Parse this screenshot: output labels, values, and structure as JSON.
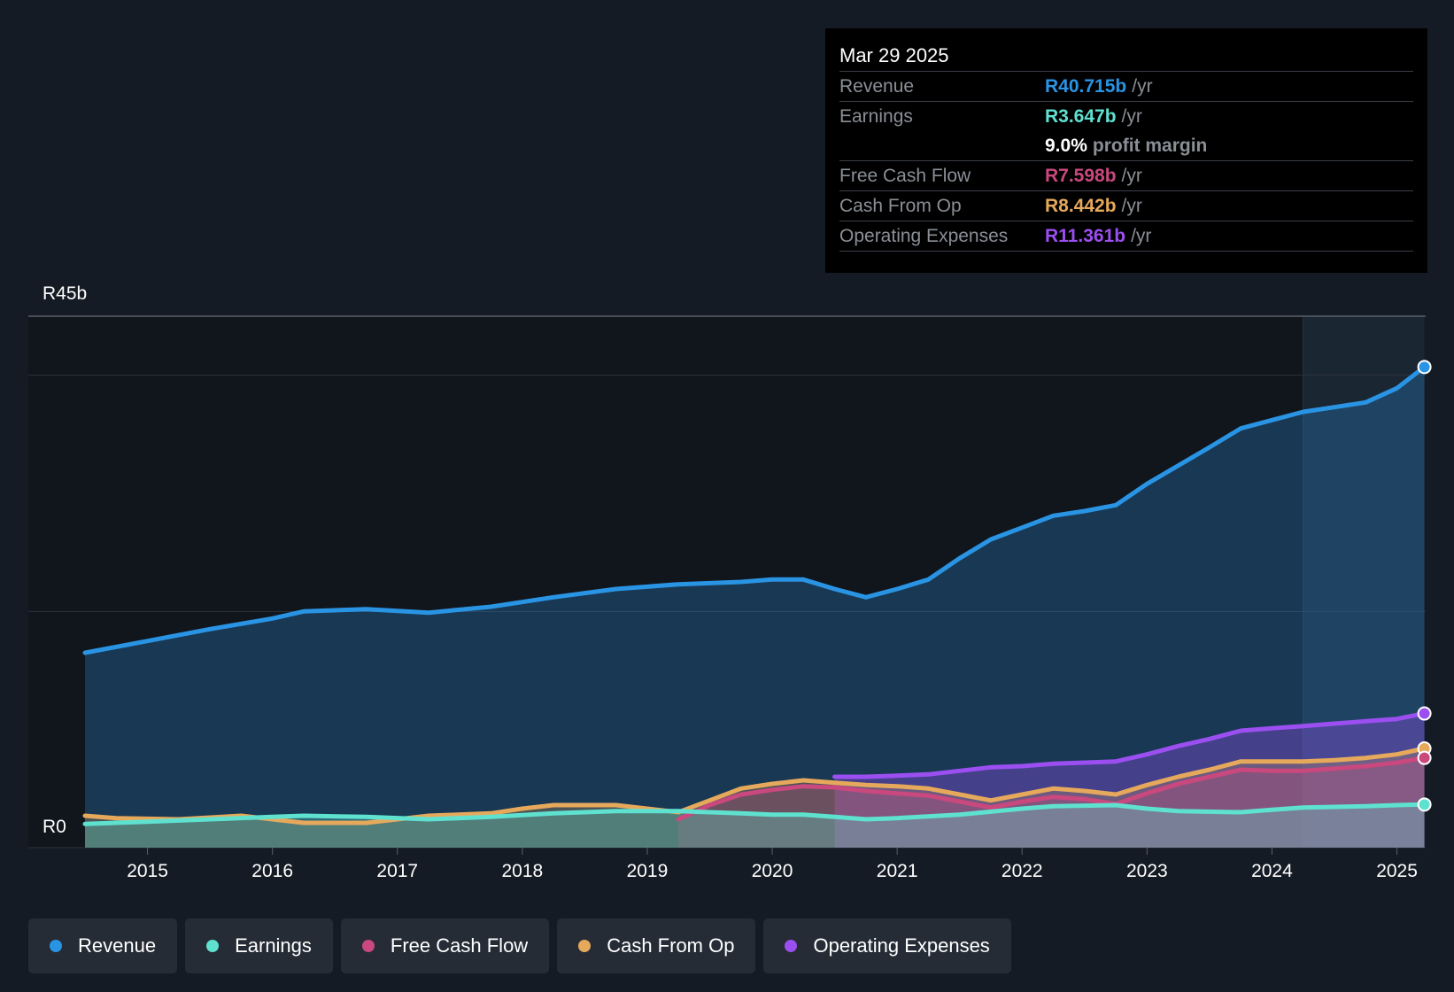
{
  "tooltip": {
    "date": "Mar 29 2025",
    "revenue_label": "Revenue",
    "revenue_value": "R40.715b",
    "earnings_label": "Earnings",
    "earnings_value": "R3.647b",
    "margin_value": "9.0%",
    "margin_text": "profit margin",
    "fcf_label": "Free Cash Flow",
    "fcf_value": "R7.598b",
    "cfo_label": "Cash From Op",
    "cfo_value": "R8.442b",
    "opex_label": "Operating Expenses",
    "opex_value": "R11.361b",
    "unit": "/yr"
  },
  "colors": {
    "revenue": "#2a94e4",
    "earnings": "#5fe1d0",
    "fcf": "#c9487e",
    "cfo": "#e6a95c",
    "opex": "#9b4ff0"
  },
  "chart_data": {
    "type": "line",
    "ylabel_top": "R45b",
    "ylabel_bottom": "R0",
    "ylim": [
      0,
      45
    ],
    "xlim": [
      2014.0,
      2025.22
    ],
    "xticks": [
      "2015",
      "2016",
      "2017",
      "2018",
      "2019",
      "2020",
      "2021",
      "2022",
      "2023",
      "2024",
      "2025"
    ],
    "forecast_start": 2024.25,
    "series": [
      {
        "name": "Revenue",
        "key": "revenue",
        "points": [
          [
            2014.5,
            16.5
          ],
          [
            2015.0,
            17.5
          ],
          [
            2015.5,
            18.5
          ],
          [
            2016.0,
            19.4
          ],
          [
            2016.25,
            20.0
          ],
          [
            2016.75,
            20.2
          ],
          [
            2017.25,
            19.9
          ],
          [
            2017.75,
            20.4
          ],
          [
            2018.25,
            21.2
          ],
          [
            2018.75,
            21.9
          ],
          [
            2019.25,
            22.3
          ],
          [
            2019.75,
            22.5
          ],
          [
            2020.0,
            22.7
          ],
          [
            2020.25,
            22.7
          ],
          [
            2020.5,
            21.9
          ],
          [
            2020.75,
            21.2
          ],
          [
            2021.0,
            21.9
          ],
          [
            2021.25,
            22.7
          ],
          [
            2021.5,
            24.5
          ],
          [
            2021.75,
            26.1
          ],
          [
            2022.0,
            27.1
          ],
          [
            2022.25,
            28.1
          ],
          [
            2022.5,
            28.5
          ],
          [
            2022.75,
            29.0
          ],
          [
            2023.0,
            30.8
          ],
          [
            2023.5,
            33.9
          ],
          [
            2023.75,
            35.5
          ],
          [
            2024.0,
            36.2
          ],
          [
            2024.25,
            36.9
          ],
          [
            2024.5,
            37.3
          ],
          [
            2024.75,
            37.7
          ],
          [
            2025.0,
            38.9
          ],
          [
            2025.22,
            40.7
          ]
        ]
      },
      {
        "name": "Earnings",
        "key": "earnings",
        "points": [
          [
            2014.5,
            2.0
          ],
          [
            2015.0,
            2.2
          ],
          [
            2015.5,
            2.4
          ],
          [
            2016.0,
            2.6
          ],
          [
            2016.25,
            2.7
          ],
          [
            2016.75,
            2.6
          ],
          [
            2017.25,
            2.4
          ],
          [
            2017.75,
            2.6
          ],
          [
            2018.25,
            2.9
          ],
          [
            2018.75,
            3.1
          ],
          [
            2019.25,
            3.1
          ],
          [
            2019.75,
            2.9
          ],
          [
            2020.0,
            2.8
          ],
          [
            2020.25,
            2.8
          ],
          [
            2020.5,
            2.6
          ],
          [
            2020.75,
            2.4
          ],
          [
            2021.0,
            2.5
          ],
          [
            2021.5,
            2.8
          ],
          [
            2022.0,
            3.3
          ],
          [
            2022.25,
            3.5
          ],
          [
            2022.75,
            3.6
          ],
          [
            2023.0,
            3.3
          ],
          [
            2023.25,
            3.1
          ],
          [
            2023.75,
            3.0
          ],
          [
            2024.0,
            3.2
          ],
          [
            2024.25,
            3.4
          ],
          [
            2024.75,
            3.5
          ],
          [
            2025.0,
            3.6
          ],
          [
            2025.22,
            3.65
          ]
        ]
      },
      {
        "name": "Free Cash Flow",
        "key": "fcf",
        "points": [
          [
            2019.25,
            2.4
          ],
          [
            2019.5,
            3.6
          ],
          [
            2019.75,
            4.5
          ],
          [
            2020.0,
            4.9
          ],
          [
            2020.25,
            5.2
          ],
          [
            2020.5,
            5.1
          ],
          [
            2020.75,
            4.8
          ],
          [
            2021.0,
            4.6
          ],
          [
            2021.25,
            4.4
          ],
          [
            2021.5,
            3.9
          ],
          [
            2021.75,
            3.4
          ],
          [
            2022.0,
            3.9
          ],
          [
            2022.25,
            4.3
          ],
          [
            2022.5,
            4.1
          ],
          [
            2022.75,
            3.7
          ],
          [
            2023.0,
            4.6
          ],
          [
            2023.25,
            5.4
          ],
          [
            2023.5,
            6.0
          ],
          [
            2023.75,
            6.6
          ],
          [
            2024.0,
            6.5
          ],
          [
            2024.25,
            6.5
          ],
          [
            2024.5,
            6.7
          ],
          [
            2024.75,
            6.9
          ],
          [
            2025.0,
            7.2
          ],
          [
            2025.22,
            7.6
          ]
        ]
      },
      {
        "name": "Cash From Op",
        "key": "cfo",
        "points": [
          [
            2014.5,
            2.7
          ],
          [
            2014.75,
            2.5
          ],
          [
            2015.25,
            2.4
          ],
          [
            2015.75,
            2.7
          ],
          [
            2016.0,
            2.4
          ],
          [
            2016.25,
            2.1
          ],
          [
            2016.75,
            2.1
          ],
          [
            2017.25,
            2.7
          ],
          [
            2017.75,
            2.9
          ],
          [
            2018.0,
            3.3
          ],
          [
            2018.25,
            3.6
          ],
          [
            2018.75,
            3.6
          ],
          [
            2019.0,
            3.3
          ],
          [
            2019.25,
            3.0
          ],
          [
            2019.5,
            4.0
          ],
          [
            2019.75,
            5.0
          ],
          [
            2020.0,
            5.4
          ],
          [
            2020.25,
            5.7
          ],
          [
            2020.5,
            5.5
          ],
          [
            2020.75,
            5.3
          ],
          [
            2021.0,
            5.2
          ],
          [
            2021.25,
            5.0
          ],
          [
            2021.5,
            4.5
          ],
          [
            2021.75,
            4.0
          ],
          [
            2022.0,
            4.5
          ],
          [
            2022.25,
            5.0
          ],
          [
            2022.5,
            4.8
          ],
          [
            2022.75,
            4.5
          ],
          [
            2023.0,
            5.3
          ],
          [
            2023.25,
            6.0
          ],
          [
            2023.5,
            6.6
          ],
          [
            2023.75,
            7.3
          ],
          [
            2024.0,
            7.3
          ],
          [
            2024.25,
            7.3
          ],
          [
            2024.5,
            7.4
          ],
          [
            2024.75,
            7.6
          ],
          [
            2025.0,
            7.9
          ],
          [
            2025.22,
            8.4
          ]
        ]
      },
      {
        "name": "Operating Expenses",
        "key": "opex",
        "points": [
          [
            2020.5,
            6.0
          ],
          [
            2020.75,
            6.0
          ],
          [
            2021.0,
            6.1
          ],
          [
            2021.25,
            6.2
          ],
          [
            2021.5,
            6.5
          ],
          [
            2021.75,
            6.8
          ],
          [
            2022.0,
            6.9
          ],
          [
            2022.25,
            7.1
          ],
          [
            2022.5,
            7.2
          ],
          [
            2022.75,
            7.3
          ],
          [
            2023.0,
            7.9
          ],
          [
            2023.25,
            8.6
          ],
          [
            2023.5,
            9.2
          ],
          [
            2023.75,
            9.9
          ],
          [
            2024.0,
            10.1
          ],
          [
            2024.25,
            10.3
          ],
          [
            2024.5,
            10.5
          ],
          [
            2024.75,
            10.7
          ],
          [
            2025.0,
            10.9
          ],
          [
            2025.22,
            11.36
          ]
        ]
      }
    ]
  },
  "legend": [
    {
      "label": "Revenue",
      "key": "revenue"
    },
    {
      "label": "Earnings",
      "key": "earnings"
    },
    {
      "label": "Free Cash Flow",
      "key": "fcf"
    },
    {
      "label": "Cash From Op",
      "key": "cfo"
    },
    {
      "label": "Operating Expenses",
      "key": "opex"
    }
  ]
}
